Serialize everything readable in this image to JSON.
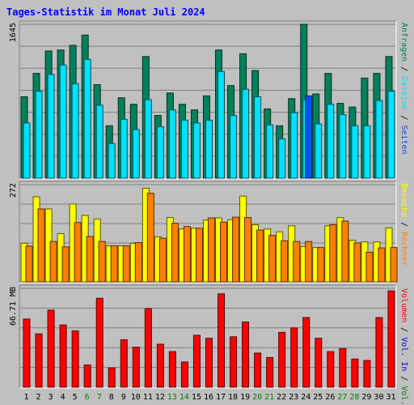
{
  "chart_data": {
    "type": "bar",
    "title": "Tages-Statistik im Monat Juli 2024",
    "categories": [
      "1",
      "2",
      "3",
      "4",
      "5",
      "6",
      "7",
      "8",
      "9",
      "10",
      "11",
      "12",
      "13",
      "14",
      "15",
      "16",
      "17",
      "18",
      "19",
      "20",
      "21",
      "22",
      "23",
      "24",
      "25",
      "26",
      "27",
      "28",
      "29",
      "30",
      "31"
    ],
    "weekend_days": [
      "6",
      "7",
      "13",
      "14",
      "20",
      "21",
      "27",
      "28"
    ],
    "colors": {
      "title": "#0000ff",
      "weekday_tick": "#000000",
      "weekend_tick": "#007f00",
      "anfragen": "#00805b",
      "dateien": "#00e0ff",
      "seiten": "#0050ff",
      "besuche": "#ffff00",
      "rechner": "#ff8000",
      "vol_in": "#0000ff",
      "vol_out": "#008000",
      "volumen": "#ff0000",
      "plot_bg": "#c0c0c0",
      "grid": "#7f7f7f"
    },
    "panels": [
      {
        "ymax_label": "1645",
        "ymax": 1645,
        "series": [
          {
            "name": "Anfragen",
            "color_key": "anfragen",
            "values": [
              870,
              1120,
              1360,
              1370,
              1420,
              1530,
              1000,
              560,
              860,
              790,
              1300,
              670,
              910,
              790,
              730,
              880,
              1370,
              990,
              1330,
              1150,
              740,
              560,
              850,
              1645,
              900,
              1120,
              800,
              760,
              1070,
              1120,
              1300
            ]
          },
          {
            "name": "Dateien",
            "color_key": "dateien",
            "values": [
              590,
              930,
              1110,
              1210,
              1010,
              1270,
              780,
              370,
              630,
              520,
              840,
              550,
              730,
              620,
              590,
              620,
              1140,
              670,
              950,
              870,
              570,
              420,
              700,
              840,
              580,
              790,
              680,
              560,
              560,
              830,
              930
            ]
          },
          {
            "name": "Seiten",
            "color_key": "seiten",
            "values": [
              0,
              0,
              0,
              0,
              0,
              0,
              0,
              0,
              0,
              0,
              0,
              0,
              0,
              0,
              0,
              0,
              0,
              0,
              0,
              0,
              0,
              0,
              0,
              880,
              0,
              0,
              0,
              0,
              0,
              0,
              0
            ]
          }
        ]
      },
      {
        "ymax_label": "272",
        "ymax": 272,
        "series": [
          {
            "name": "Besuche",
            "color_key": "besuche",
            "values": [
              108,
              238,
              204,
              135,
              218,
              186,
              176,
              101,
              101,
              108,
              262,
              126,
              180,
              148,
              150,
              173,
              179,
              174,
              240,
              160,
              148,
              140,
              157,
              99,
              96,
              157,
              180,
              116,
              112,
              112,
              151
            ]
          },
          {
            "name": "Rechner",
            "color_key": "rechner",
            "values": [
              0,
              0,
              0,
              0,
              0,
              0,
              0,
              0,
              0,
              0,
              0,
              0,
              0,
              0,
              0,
              0,
              0,
              0,
              0,
              0,
              0,
              0,
              0,
              0,
              0,
              0,
              0,
              0,
              0,
              0,
              0
            ]
          },
          {
            "name": "Rechner",
            "color_key": "rechner",
            "values": [
              100,
              204,
              113,
              98,
              166,
              127,
              113,
              101,
              101,
              110,
              248,
              122,
              164,
              155,
              150,
              179,
              167,
              181,
              180,
              145,
              130,
              115,
              113,
              113,
              96,
              160,
              170,
              109,
              83,
              95,
              96
            ]
          }
        ]
      },
      {
        "ymax_label": "66.71 MB",
        "ymax": 66.71,
        "series": [
          {
            "name": "Volumen",
            "color_key": "volumen",
            "values": [
              46,
              36,
              52,
              42,
              38,
              15,
              60,
              13,
              32,
              27,
              53,
              29,
              24,
              17,
              35,
              33,
              63,
              34,
              44,
              23,
              20,
              37,
              40,
              47,
              33,
              24,
              26,
              19,
              18,
              47,
              65
            ]
          }
        ]
      }
    ],
    "right_labels": {
      "top": [
        {
          "text": "Anfragen",
          "color_key": "anfragen"
        },
        {
          "text": "Dateien",
          "color_key": "dateien"
        },
        {
          "text": "Seiten",
          "color_key": "seiten"
        }
      ],
      "middle": [
        {
          "text": "Besuche",
          "color_key": "besuche"
        },
        {
          "text": "Rechner",
          "color_key": "rechner"
        }
      ],
      "bottom": [
        {
          "text": "Volumen",
          "color_key": "volumen"
        },
        {
          "text": "Vol. In",
          "color_key": "vol_in"
        },
        {
          "text": "Vol. Out",
          "color_key": "vol_out"
        }
      ]
    }
  }
}
